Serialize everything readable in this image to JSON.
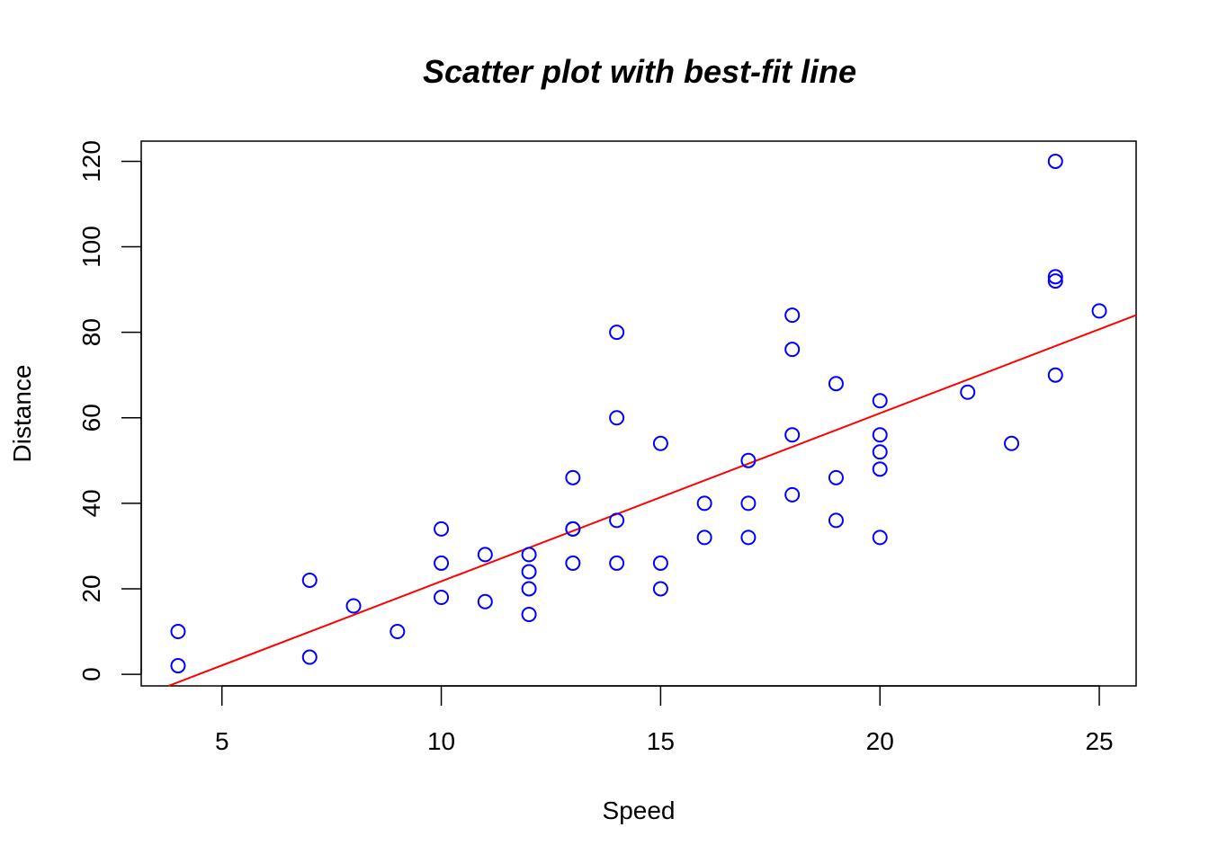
{
  "chart_data": {
    "type": "scatter",
    "title": "Scatter plot with best-fit line",
    "xlabel": "Speed",
    "ylabel": "Distance",
    "xlim": [
      3.16,
      25.84
    ],
    "ylim": [
      -2.72,
      124.72
    ],
    "x_ticks": [
      5,
      10,
      15,
      20,
      25
    ],
    "y_ticks": [
      0,
      20,
      40,
      60,
      80,
      100,
      120
    ],
    "grid": false,
    "point_color": "#0000ff",
    "line_color": "#ff0000",
    "points": [
      [
        4,
        2
      ],
      [
        4,
        10
      ],
      [
        7,
        4
      ],
      [
        7,
        22
      ],
      [
        8,
        16
      ],
      [
        9,
        10
      ],
      [
        10,
        18
      ],
      [
        10,
        26
      ],
      [
        10,
        34
      ],
      [
        11,
        17
      ],
      [
        11,
        28
      ],
      [
        12,
        14
      ],
      [
        12,
        20
      ],
      [
        12,
        24
      ],
      [
        12,
        28
      ],
      [
        13,
        26
      ],
      [
        13,
        34
      ],
      [
        13,
        34
      ],
      [
        13,
        46
      ],
      [
        14,
        26
      ],
      [
        14,
        36
      ],
      [
        14,
        60
      ],
      [
        14,
        80
      ],
      [
        15,
        20
      ],
      [
        15,
        26
      ],
      [
        15,
        54
      ],
      [
        16,
        32
      ],
      [
        16,
        40
      ],
      [
        17,
        32
      ],
      [
        17,
        40
      ],
      [
        17,
        50
      ],
      [
        18,
        42
      ],
      [
        18,
        56
      ],
      [
        18,
        76
      ],
      [
        18,
        84
      ],
      [
        19,
        36
      ],
      [
        19,
        46
      ],
      [
        19,
        68
      ],
      [
        20,
        32
      ],
      [
        20,
        48
      ],
      [
        20,
        52
      ],
      [
        20,
        56
      ],
      [
        20,
        64
      ],
      [
        22,
        66
      ],
      [
        23,
        54
      ],
      [
        24,
        70
      ],
      [
        24,
        92
      ],
      [
        24,
        93
      ],
      [
        24,
        120
      ],
      [
        25,
        85
      ]
    ],
    "fit_line": {
      "intercept": -17.579,
      "slope": 3.932
    }
  }
}
